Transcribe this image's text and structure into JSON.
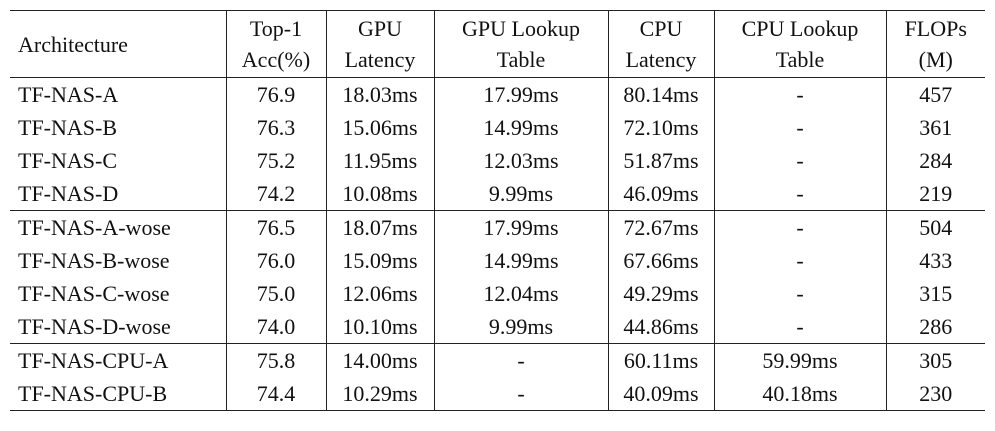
{
  "header": [
    [
      "Architecture"
    ],
    [
      "Top-1",
      "Acc(%)"
    ],
    [
      "GPU",
      "Latency"
    ],
    [
      "GPU Lookup",
      "Table"
    ],
    [
      "CPU",
      "Latency"
    ],
    [
      "CPU Lookup",
      "Table"
    ],
    [
      "FLOPs",
      "(M)"
    ]
  ],
  "groups": [
    [
      [
        "TF-NAS-A",
        "76.9",
        "18.03ms",
        "17.99ms",
        "80.14ms",
        "-",
        "457"
      ],
      [
        "TF-NAS-B",
        "76.3",
        "15.06ms",
        "14.99ms",
        "72.10ms",
        "-",
        "361"
      ],
      [
        "TF-NAS-C",
        "75.2",
        "11.95ms",
        "12.03ms",
        "51.87ms",
        "-",
        "284"
      ],
      [
        "TF-NAS-D",
        "74.2",
        "10.08ms",
        "9.99ms",
        "46.09ms",
        "-",
        "219"
      ]
    ],
    [
      [
        "TF-NAS-A-wose",
        "76.5",
        "18.07ms",
        "17.99ms",
        "72.67ms",
        "-",
        "504"
      ],
      [
        "TF-NAS-B-wose",
        "76.0",
        "15.09ms",
        "14.99ms",
        "67.66ms",
        "-",
        "433"
      ],
      [
        "TF-NAS-C-wose",
        "75.0",
        "12.06ms",
        "12.04ms",
        "49.29ms",
        "-",
        "315"
      ],
      [
        "TF-NAS-D-wose",
        "74.0",
        "10.10ms",
        "9.99ms",
        "44.86ms",
        "-",
        "286"
      ]
    ],
    [
      [
        "TF-NAS-CPU-A",
        "75.8",
        "14.00ms",
        "-",
        "60.11ms",
        "59.99ms",
        "305"
      ],
      [
        "TF-NAS-CPU-B",
        "74.4",
        "10.29ms",
        "-",
        "40.09ms",
        "40.18ms",
        "230"
      ]
    ]
  ]
}
